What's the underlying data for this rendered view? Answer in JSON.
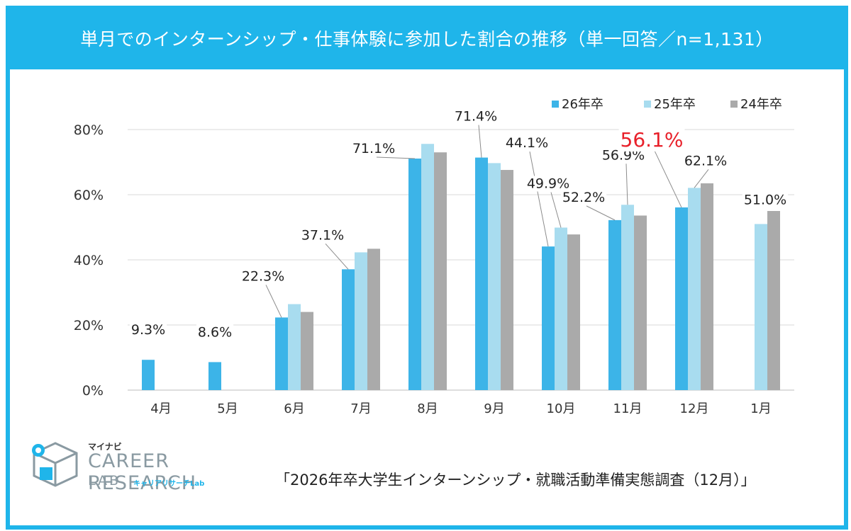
{
  "title": "単月でのインターンシップ・仕事体験に参加した割合の推移（単一回答／n=1,131）",
  "chart_data": {
    "type": "bar",
    "categories": [
      "4月",
      "5月",
      "6月",
      "7月",
      "8月",
      "9月",
      "10月",
      "11月",
      "12月",
      "1月"
    ],
    "series": [
      {
        "name": "26年卒",
        "color": "#3cb4e8",
        "values": [
          9.3,
          8.6,
          22.3,
          37.1,
          71.1,
          71.4,
          44.1,
          52.2,
          56.1,
          null
        ]
      },
      {
        "name": "25年卒",
        "color": "#a8dcef",
        "values": [
          null,
          null,
          26.4,
          42.3,
          75.6,
          69.7,
          49.9,
          56.9,
          62.1,
          51.0
        ]
      },
      {
        "name": "24年卒",
        "color": "#aaaaaa",
        "values": [
          null,
          null,
          24.0,
          43.4,
          73.0,
          67.6,
          47.8,
          53.6,
          63.5,
          55.0
        ]
      }
    ],
    "ylim": [
      0,
      80
    ],
    "yticks": [
      "0%",
      "20%",
      "40%",
      "60%",
      "80%"
    ],
    "ytick_values": [
      0,
      20,
      40,
      60,
      80
    ],
    "grid": true,
    "legend": "top-right",
    "data_labels": [
      {
        "series": 0,
        "index": 0,
        "text": "9.3%",
        "highlight": false
      },
      {
        "series": 0,
        "index": 1,
        "text": "8.6%",
        "highlight": false
      },
      {
        "series": 0,
        "index": 2,
        "text": "22.3%",
        "highlight": false
      },
      {
        "series": 0,
        "index": 3,
        "text": "37.1%",
        "highlight": false
      },
      {
        "series": 0,
        "index": 4,
        "text": "71.1%",
        "highlight": false
      },
      {
        "series": 0,
        "index": 5,
        "text": "71.4%",
        "highlight": false
      },
      {
        "series": 0,
        "index": 6,
        "text": "44.1%",
        "highlight": false
      },
      {
        "series": 1,
        "index": 6,
        "text": "49.9%",
        "highlight": false
      },
      {
        "series": 0,
        "index": 7,
        "text": "52.2%",
        "highlight": false
      },
      {
        "series": 1,
        "index": 7,
        "text": "56.9%",
        "highlight": false
      },
      {
        "series": 0,
        "index": 8,
        "text": "56.1%",
        "highlight": true
      },
      {
        "series": 1,
        "index": 8,
        "text": "62.1%",
        "highlight": false
      },
      {
        "series": 1,
        "index": 9,
        "text": "51.0%",
        "highlight": false
      }
    ],
    "highlight_color": "#e8202a"
  },
  "logo": {
    "brand": "マイナビ",
    "line1": "CAREER RESEARCH",
    "line2": "LAB",
    "sub": "キャリアリサーチLab"
  },
  "source": "「2026年卒大学生インターンシップ・就職活動準備実態調査（12月）」"
}
